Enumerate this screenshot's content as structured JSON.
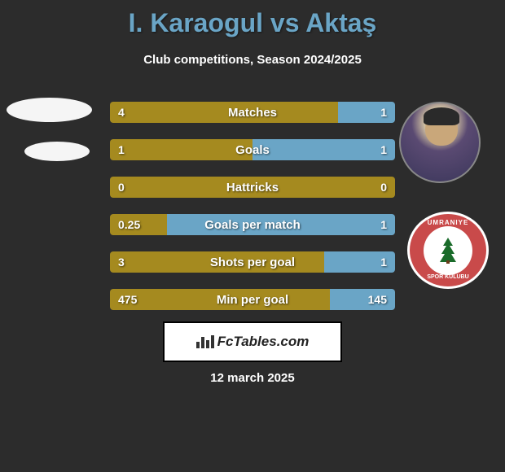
{
  "title": "I. Karaogul vs Aktaş",
  "subtitle": "Club competitions, Season 2024/2025",
  "footer_brand": "FcTables.com",
  "date": "12 march 2025",
  "club_text_top": "UMRANIYE",
  "club_text_bot": "SPOR KULUBU",
  "colors": {
    "left_bar": "#a58a1f",
    "right_bar": "#6aa5c6",
    "hattrick_bar": "#a58a1f",
    "background": "#2c2c2c"
  },
  "stats": [
    {
      "label": "Matches",
      "left_val": "4",
      "right_val": "1",
      "left_pct": 80,
      "color_left": "#a58a1f",
      "color_right": "#6aa5c6"
    },
    {
      "label": "Goals",
      "left_val": "1",
      "right_val": "1",
      "left_pct": 50,
      "color_left": "#a58a1f",
      "color_right": "#6aa5c6"
    },
    {
      "label": "Hattricks",
      "left_val": "0",
      "right_val": "0",
      "left_pct": 100,
      "color_left": "#a58a1f",
      "color_right": "#a58a1f"
    },
    {
      "label": "Goals per match",
      "left_val": "0.25",
      "right_val": "1",
      "left_pct": 20,
      "color_left": "#a58a1f",
      "color_right": "#6aa5c6"
    },
    {
      "label": "Shots per goal",
      "left_val": "3",
      "right_val": "1",
      "left_pct": 75,
      "color_left": "#a58a1f",
      "color_right": "#6aa5c6"
    },
    {
      "label": "Min per goal",
      "left_val": "475",
      "right_val": "145",
      "left_pct": 77,
      "color_left": "#a58a1f",
      "color_right": "#6aa5c6"
    }
  ]
}
